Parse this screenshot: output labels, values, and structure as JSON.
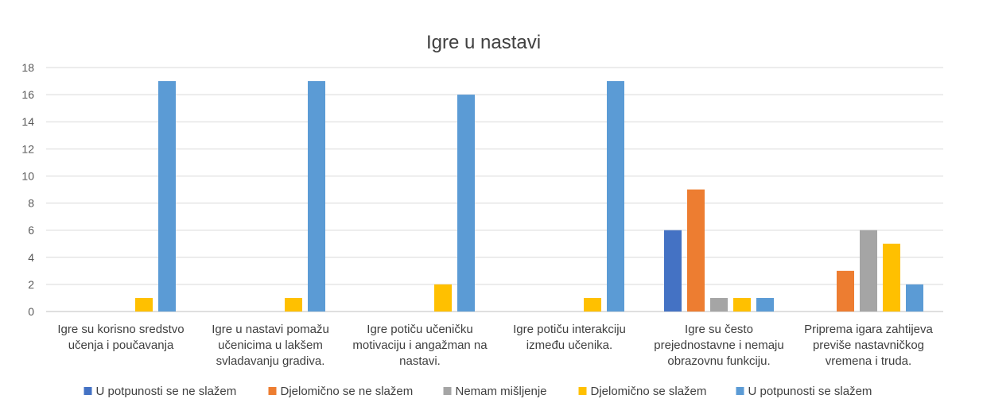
{
  "chart_data": {
    "type": "bar",
    "title": "Igre u nastavi",
    "categories": [
      [
        "Igre su korisno sredstvo",
        "učenja i poučavanja"
      ],
      [
        "Igre u nastavi pomažu",
        "učenicima u lakšem",
        "svladavanju gradiva."
      ],
      [
        "Igre potiču učeničku",
        "motivaciju i angažman na",
        "nastavi."
      ],
      [
        "Igre potiču interakciju",
        "između učenika."
      ],
      [
        "Igre su često",
        "prejednostavne i nemaju",
        "obrazovnu funkciju."
      ],
      [
        "Priprema igara zahtijeva",
        "previše nastavničkog",
        "vremena i truda."
      ]
    ],
    "series": [
      {
        "name": "U potpunosti se ne slažem",
        "color": "#4472C4",
        "values": [
          0,
          0,
          0,
          0,
          6,
          0
        ]
      },
      {
        "name": "Djelomično se ne slažem",
        "color": "#ED7D31",
        "values": [
          0,
          0,
          0,
          0,
          9,
          3
        ]
      },
      {
        "name": "Nemam mišljenje",
        "color": "#A5A5A5",
        "values": [
          0,
          0,
          0,
          0,
          1,
          6
        ]
      },
      {
        "name": "Djelomično se slažem",
        "color": "#FFC000",
        "values": [
          1,
          1,
          2,
          1,
          1,
          5
        ]
      },
      {
        "name": "U potpunosti se slažem",
        "color": "#5B9BD5",
        "values": [
          17,
          17,
          16,
          17,
          1,
          2
        ]
      }
    ],
    "ylim": [
      0,
      18
    ],
    "yticks": [
      0,
      2,
      4,
      6,
      8,
      10,
      12,
      14,
      16,
      18
    ],
    "grid": true,
    "legend": "bottom",
    "xlabel": "",
    "ylabel": ""
  }
}
